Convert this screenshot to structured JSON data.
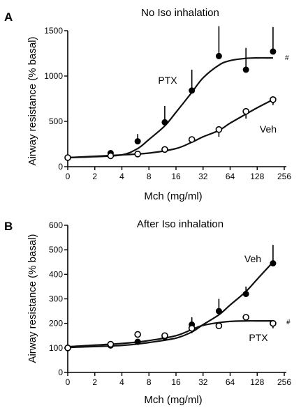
{
  "chart_data": [
    {
      "type": "line",
      "panel": "A",
      "title": "No Iso inhalation",
      "xlabel": "Mch (mg/ml)",
      "ylabel": "Airway resistance (% basal)",
      "x_scale": "log2 (0 on origin)",
      "x_ticks": [
        "0",
        "2",
        "4",
        "8",
        "16",
        "32",
        "64",
        "128",
        "256"
      ],
      "y_ticks": [
        "0",
        "500",
        "1000",
        "1500"
      ],
      "ylim": [
        0,
        1600
      ],
      "grid": false,
      "significance_mark": "#",
      "series": [
        {
          "name": "PTX",
          "marker": "filled-circle",
          "x": [
            0,
            3,
            6,
            12,
            24,
            48,
            96,
            192
          ],
          "y": [
            100,
            150,
            280,
            490,
            840,
            1220,
            1070,
            1270
          ],
          "err_upper": [
            0,
            0,
            80,
            180,
            230,
            330,
            240,
            270
          ],
          "fit": [
            [
              0,
              100
            ],
            [
              2,
              110
            ],
            [
              4,
              130
            ],
            [
              6,
              200
            ],
            [
              8,
              300
            ],
            [
              12,
              450
            ],
            [
              16,
              600
            ],
            [
              24,
              820
            ],
            [
              32,
              980
            ],
            [
              48,
              1120
            ],
            [
              64,
              1170
            ],
            [
              96,
              1195
            ],
            [
              128,
              1200
            ],
            [
              192,
              1200
            ]
          ]
        },
        {
          "name": "Veh",
          "marker": "open-circle",
          "x": [
            0,
            3,
            6,
            12,
            24,
            48,
            96,
            192
          ],
          "y": [
            100,
            120,
            140,
            190,
            300,
            410,
            610,
            740
          ],
          "err_lower": [
            0,
            0,
            0,
            0,
            0,
            80,
            80,
            60
          ],
          "fit": [
            [
              0,
              100
            ],
            [
              4,
              130
            ],
            [
              8,
              150
            ],
            [
              16,
              200
            ],
            [
              24,
              270
            ],
            [
              32,
              330
            ],
            [
              48,
              400
            ],
            [
              64,
              480
            ],
            [
              96,
              580
            ],
            [
              128,
              650
            ],
            [
              192,
              740
            ]
          ]
        }
      ]
    },
    {
      "type": "line",
      "panel": "B",
      "title": "After Iso inhalation",
      "xlabel": "Mch (mg/ml)",
      "ylabel": "Airway resistance (% basal)",
      "x_scale": "log2 (0 on origin)",
      "x_ticks": [
        "0",
        "2",
        "4",
        "8",
        "16",
        "32",
        "64",
        "128",
        "256"
      ],
      "y_ticks": [
        "0",
        "100",
        "200",
        "300",
        "400",
        "500",
        "600"
      ],
      "ylim": [
        0,
        600
      ],
      "grid": false,
      "significance_mark": "#",
      "series": [
        {
          "name": "Veh",
          "marker": "filled-circle",
          "x": [
            0,
            3,
            6,
            12,
            24,
            48,
            96,
            192
          ],
          "y": [
            100,
            110,
            125,
            145,
            195,
            250,
            320,
            445
          ],
          "err_upper": [
            0,
            0,
            0,
            0,
            30,
            50,
            30,
            75
          ],
          "fit": [
            [
              0,
              102
            ],
            [
              4,
              110
            ],
            [
              8,
              122
            ],
            [
              16,
              140
            ],
            [
              24,
              165
            ],
            [
              32,
              195
            ],
            [
              48,
              235
            ],
            [
              64,
              275
            ],
            [
              96,
              330
            ],
            [
              128,
              380
            ],
            [
              192,
              450
            ]
          ]
        },
        {
          "name": "PTX",
          "marker": "open-circle",
          "x": [
            0,
            3,
            6,
            12,
            24,
            48,
            96,
            192
          ],
          "y": [
            100,
            115,
            155,
            150,
            180,
            190,
            225,
            200
          ],
          "err_lower": [
            0,
            0,
            0,
            0,
            20,
            0,
            0,
            20
          ],
          "fit": [
            [
              0,
              105
            ],
            [
              4,
              118
            ],
            [
              8,
              130
            ],
            [
              16,
              150
            ],
            [
              24,
              175
            ],
            [
              32,
              192
            ],
            [
              48,
              203
            ],
            [
              64,
              208
            ],
            [
              96,
              210
            ],
            [
              128,
              210
            ],
            [
              192,
              210
            ]
          ]
        }
      ]
    }
  ]
}
